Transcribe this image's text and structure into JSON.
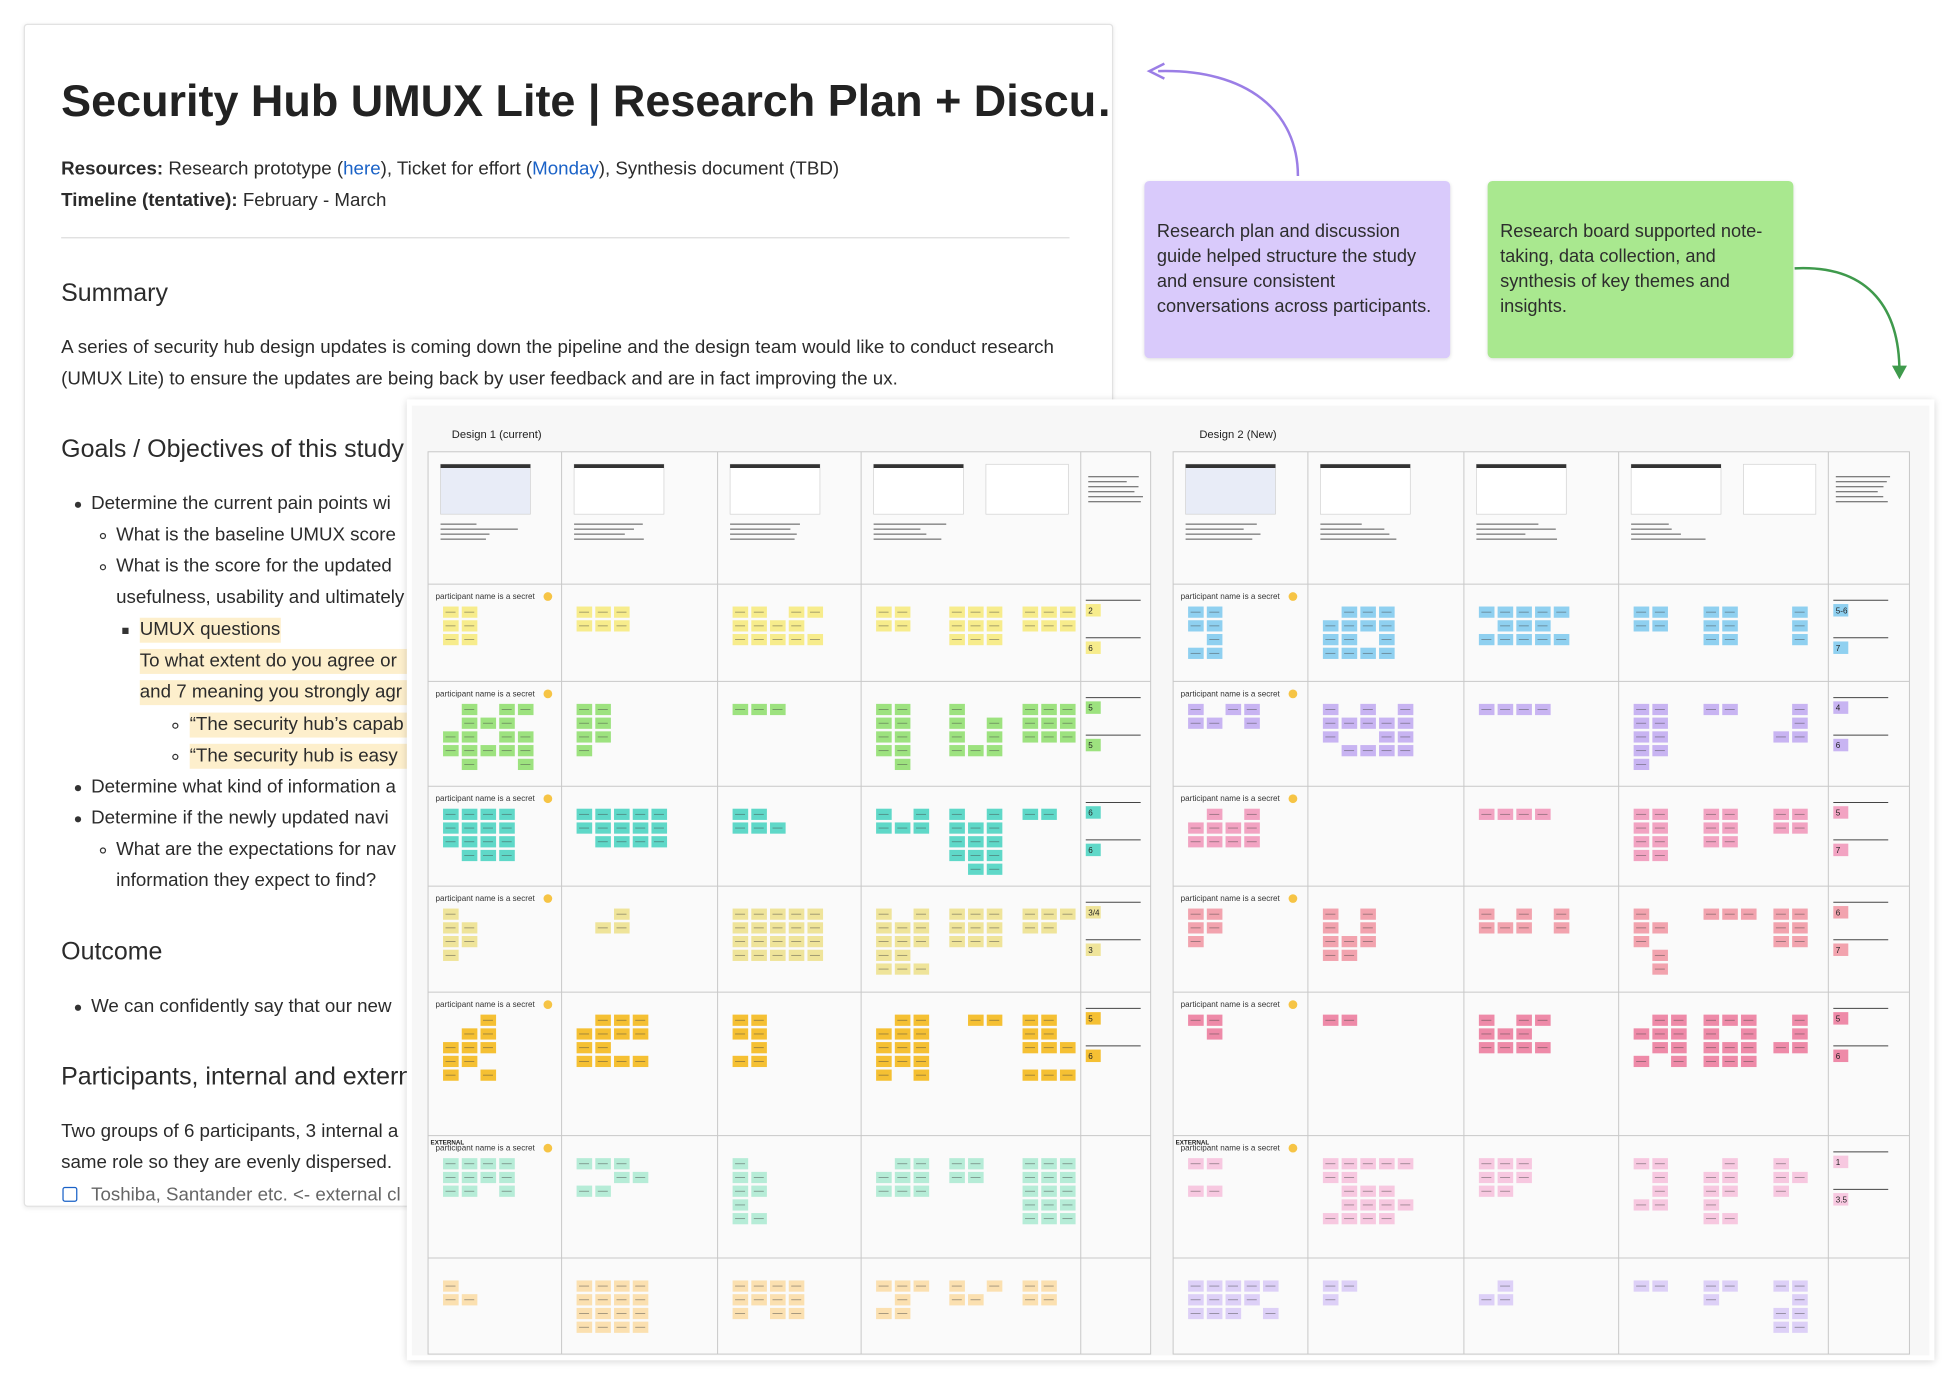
{
  "doc": {
    "title": "Security Hub UMUX Lite | Research Plan + Discu…",
    "resources_label": "Resources:",
    "resources_text_1": "Research prototype (",
    "link_here": "here",
    "resources_text_2": "), Ticket for effort (",
    "link_monday": "Monday",
    "resources_text_3": "), Synthesis document (TBD)",
    "timeline_label": "Timeline (tentative):",
    "timeline_value": "February - March",
    "summary_heading": "Summary",
    "summary_text": "A series of security hub design updates is coming down the pipeline and the design team would like to conduct research (UMUX Lite) to ensure the updates are being back by user feedback and are in fact improving the ux.",
    "goals_heading": "Goals / Objectives of this study",
    "goals": [
      "Determine the current pain points wi",
      "What is the baseline UMUX score",
      "What is the score for the updated",
      "usefulness, usability and ultimately",
      "UMUX questions",
      "To what extent do you agree or",
      "and 7 meaning you strongly agr",
      "“The security hub’s capab",
      "“The security hub is easy",
      "Determine what kind of information a",
      "Determine if the newly updated navi",
      "What are the expectations for nav",
      "information they expect to find?"
    ],
    "outcome_heading": "Outcome",
    "outcome_items": [
      "We can confidently say that our new"
    ],
    "participants_heading": "Participants, internal and externa",
    "participants_text": [
      "Two groups of 6 participants, 3 internal a",
      "same role so they are evenly dispersed."
    ],
    "checklist": [
      "Toshiba, Santander etc. <- external cl"
    ]
  },
  "notes": [
    "Research plan and discussion guide helped structure the study and ensure consistent conversations across participants.",
    "Research board supported note-taking, data collection, and synthesis of key themes and insights."
  ],
  "board": {
    "design_1_title": "Design 1 (current)",
    "design_2_title": "Design 2 (New)",
    "participant_labels_1": [
      "participant name is a secret",
      "participant name is a secret",
      "participant name is a secret",
      "participant name is a secret",
      "participant name is a secret",
      "participant name is a secret"
    ],
    "participant_labels_2": [
      "participant name is a secret",
      "participant name is a secret",
      "participant name is a secret",
      "participant name is a secret",
      "participant name is a secret",
      "participant name is a secret"
    ],
    "external_label": "EXTERNAL",
    "scores_1": [
      [
        "2",
        "6"
      ],
      [
        "5",
        "5"
      ],
      [
        "6",
        "6"
      ],
      [
        "3/4",
        "3"
      ],
      [
        "5",
        "6"
      ]
    ],
    "scores_2": [
      [
        "5-6",
        "7"
      ],
      [
        "4",
        "6"
      ],
      [
        "5",
        "7"
      ],
      [
        "6",
        "7"
      ],
      [
        "5",
        "6"
      ],
      [
        "1",
        "3.5"
      ]
    ]
  }
}
